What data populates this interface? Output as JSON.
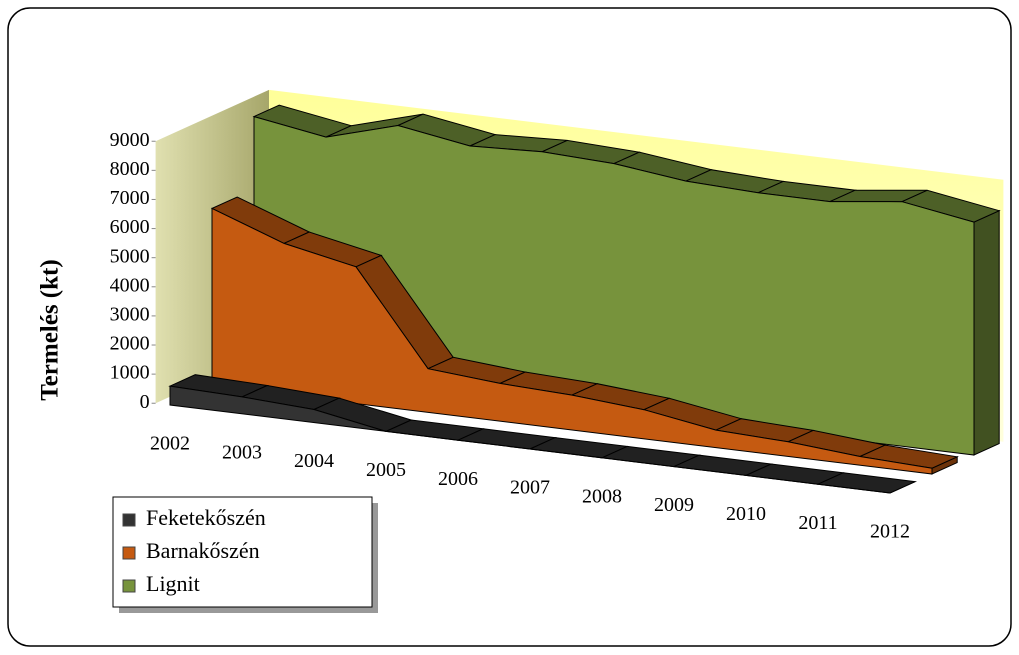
{
  "chart_data": {
    "type": "area3d",
    "y_label": "Termelés (kt)",
    "categories": [
      "2002",
      "2003",
      "2004",
      "2005",
      "2006",
      "2007",
      "2008",
      "2009",
      "2010",
      "2011",
      "2012"
    ],
    "series": [
      {
        "name": "Feketekőszén",
        "color": "#333333",
        "values": [
          650,
          580,
          450,
          0,
          0,
          0,
          0,
          0,
          0,
          0,
          0
        ]
      },
      {
        "name": "Barnakőszén",
        "color": "#c55a11",
        "values": [
          6100,
          5200,
          4700,
          1500,
          1300,
          1200,
          1000,
          600,
          500,
          300,
          200
        ]
      },
      {
        "name": "Lignit",
        "color": "#77933c",
        "values": [
          8600,
          8200,
          8900,
          8500,
          8600,
          8500,
          8200,
          8100,
          8100,
          8400,
          8000
        ]
      }
    ],
    "ylim": [
      0,
      9000
    ],
    "yticks": [
      0,
      1000,
      2000,
      3000,
      4000,
      5000,
      6000,
      7000,
      8000,
      9000
    ],
    "legend": "bottom-left"
  }
}
